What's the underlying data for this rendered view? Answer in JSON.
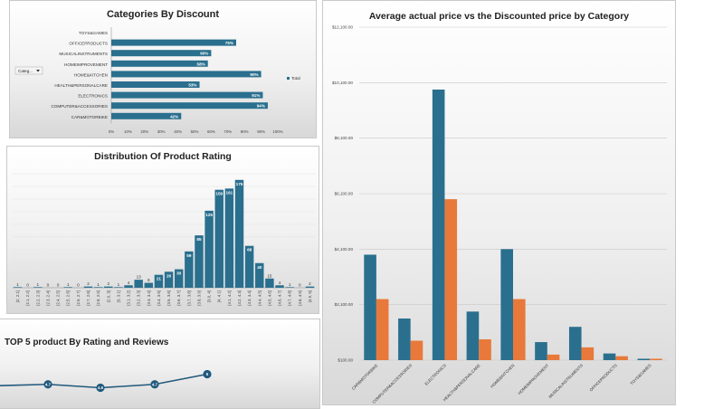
{
  "charts": {
    "discount": {
      "title": "Categories By Discount",
      "filter_label": "Categ...",
      "legend": "Total",
      "xticks": [
        "0%",
        "10%",
        "20%",
        "30%",
        "40%",
        "50%",
        "60%",
        "70%",
        "80%",
        "90%",
        "100%"
      ]
    },
    "rating": {
      "title": "Distribution Of Product Rating"
    },
    "price": {
      "title": "Average actual price vs the Discounted price by Category",
      "yticks": [
        "$100.00",
        "$2,100.00",
        "$4,100.00",
        "$6,100.00",
        "$8,100.00",
        "$10,100.00",
        "$12,100.00"
      ]
    },
    "top5": {
      "title": "TOP 5 product By Rating and Reviews"
    }
  },
  "colors": {
    "blue": "#2a6f8e",
    "orange": "#e8793a",
    "line": "#21597d"
  },
  "chart_data": [
    {
      "type": "bar",
      "orientation": "horizontal",
      "title": "Categories By Discount",
      "categories": [
        "TOYS&GAMES",
        "OFFICEPRODUCTS",
        "MUSICALINSTRUMENTS",
        "HOMEIMPROVEMENT",
        "HOME&KITCHEN",
        "HEALTH&PERSONALCARE",
        "ELECTRONICS",
        "COMPUTER&ACCESSORIES",
        "CAR&MOTORBIKE"
      ],
      "values": [
        0,
        75,
        60,
        58,
        90,
        53,
        91,
        94,
        42
      ],
      "labels": [
        "",
        "75%",
        "60%",
        "58%",
        "90%",
        "53%",
        "91%",
        "94%",
        "42%"
      ],
      "xlim": [
        0,
        100
      ],
      "legend": "right"
    },
    {
      "type": "bar",
      "title": "Distribution Of Product Rating",
      "categories": [
        "(2, 2.1]",
        "(2.1, 2.2]",
        "(2.2, 2.3]",
        "(2.3, 2.4]",
        "(2.4, 2.5]",
        "(2.5, 2.6]",
        "(2.6, 2.7]",
        "(2.7, 2.8]",
        "(2.8, 2.9]",
        "(2.9, 3]",
        "(3, 3.1]",
        "(3.1, 3.2]",
        "(3.2, 3.3]",
        "(3.3, 3.4]",
        "(3.4, 3.5]",
        "(3.5, 3.6]",
        "(3.6, 3.7]",
        "(3.7, 3.8]",
        "(3.8, 3.9]",
        "(3.9, 4]",
        "(4, 4.1]",
        "(4.1, 4.2]",
        "(4.2, 4.3]",
        "(4.3, 4.4]",
        "(4.4, 4.5]",
        "(4.5, 4.6]",
        "(4.6, 4.7]",
        "(4.7, 4.8]",
        "(4.8, 4.9]",
        "(4.9, 5]"
      ],
      "values": [
        1,
        0,
        1,
        0,
        0,
        1,
        0,
        2,
        1,
        2,
        1,
        4,
        13,
        8,
        21,
        26,
        30,
        59,
        85,
        125,
        159,
        161,
        175,
        68,
        40,
        15,
        4,
        1,
        0,
        2
      ],
      "ylim": [
        0,
        185
      ]
    },
    {
      "type": "bar",
      "title": "Average actual price vs the Discounted price by Category",
      "categories": [
        "CAR&MOTORBIKE",
        "COMPUTER&ACCESSORIES",
        "ELECTRONICS",
        "HEALTH&PERSONALCARE",
        "HOME&KITCHEN",
        "HOMEIMPROVEMENT",
        "MUSICALINSTRUMENTS",
        "OFFICEPRODUCTS",
        "TOYS&GAMES"
      ],
      "series": [
        {
          "values": [
            3900,
            1600,
            9850,
            1850,
            4100,
            750,
            1300,
            340,
            150
          ]
        },
        {
          "values": [
            2300,
            800,
            5900,
            850,
            2300,
            300,
            560,
            240,
            150
          ]
        }
      ],
      "ylim": [
        100,
        12100
      ]
    },
    {
      "type": "line",
      "title": "TOP 5 product By Rating and Reviews",
      "values": [
        4.7,
        4.6,
        4.7,
        5
      ],
      "labels": [
        "4.7",
        "4.6",
        "4.7",
        "5"
      ]
    }
  ]
}
